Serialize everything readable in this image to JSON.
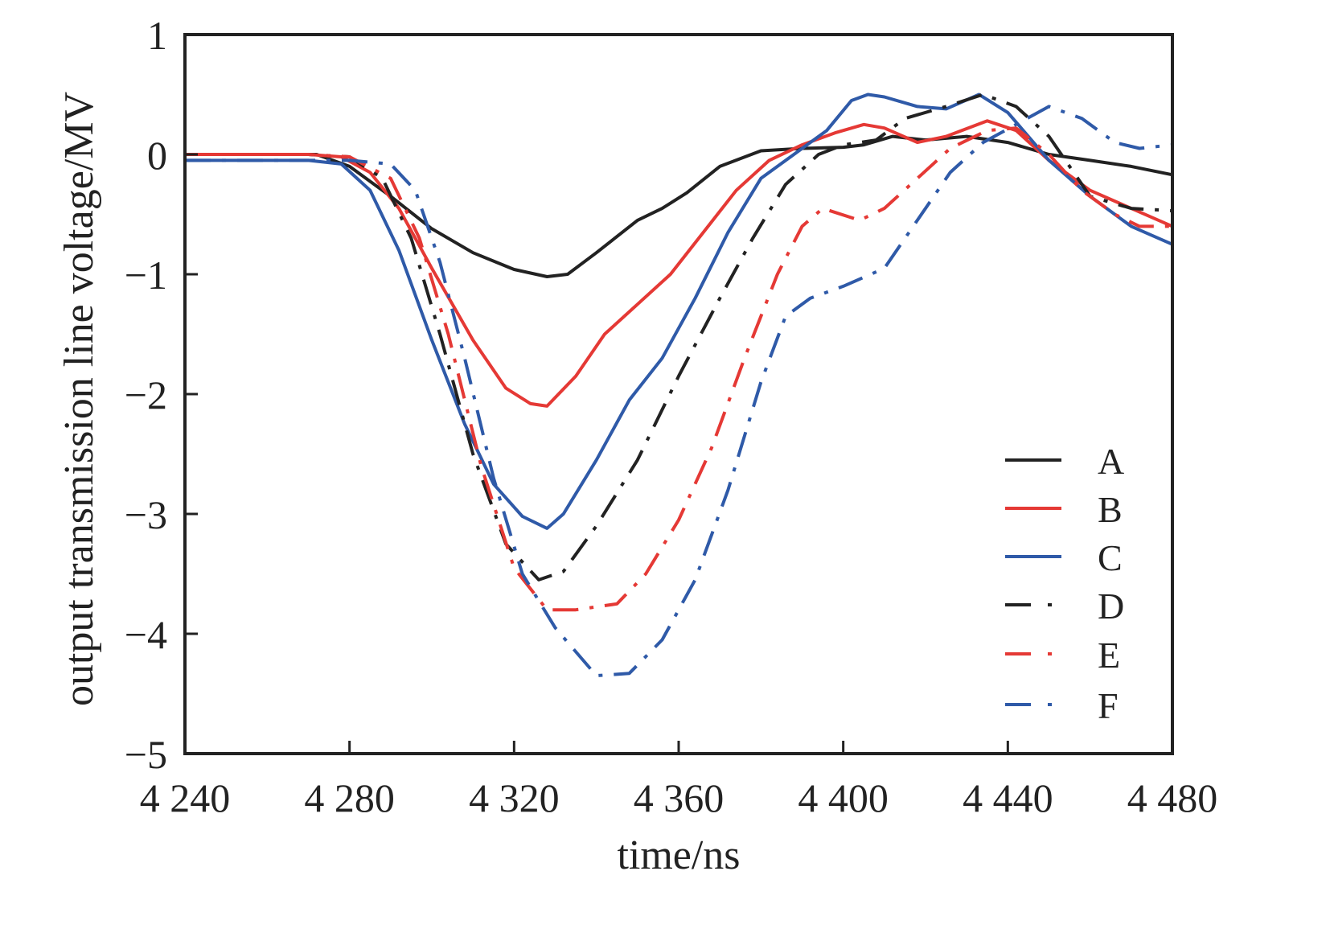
{
  "chart_data": {
    "type": "line",
    "title": "",
    "xlabel": "time/ns",
    "ylabel": "output transmission line voltage/MV",
    "xlim": [
      4240,
      4480
    ],
    "ylim": [
      -5,
      1
    ],
    "x_ticks": [
      4240,
      4280,
      4320,
      4360,
      4400,
      4440,
      4480
    ],
    "x_tick_labels": [
      "4 240",
      "4 280",
      "4 320",
      "4 360",
      "4 400",
      "4 440",
      "4 480"
    ],
    "y_ticks": [
      1,
      0,
      -1,
      -2,
      -3,
      -4,
      -5
    ],
    "y_tick_labels": [
      "1",
      "0",
      "−1",
      "−2",
      "−3",
      "−4",
      "−5"
    ],
    "grid": false,
    "legend_position": "bottom-right",
    "series": [
      {
        "name": "A",
        "color": "#222222",
        "style": "solid",
        "x": [
          4240,
          4260,
          4272,
          4280,
          4290,
          4300,
          4310,
          4320,
          4328,
          4333,
          4340,
          4350,
          4356,
          4362,
          4370,
          4380,
          4390,
          4400,
          4405,
          4412,
          4420,
          4430,
          4440,
          4450,
          4460,
          4470,
          4480
        ],
        "y": [
          0.0,
          0.0,
          0.0,
          -0.1,
          -0.35,
          -0.62,
          -0.82,
          -0.96,
          -1.02,
          -1.0,
          -0.82,
          -0.55,
          -0.45,
          -0.32,
          -0.1,
          0.03,
          0.05,
          0.06,
          0.08,
          0.15,
          0.12,
          0.15,
          0.1,
          0.0,
          -0.05,
          -0.1,
          -0.17
        ]
      },
      {
        "name": "B",
        "color": "#e53935",
        "style": "solid",
        "x": [
          4240,
          4270,
          4278,
          4285,
          4292,
          4300,
          4310,
          4318,
          4324,
          4328,
          4335,
          4342,
          4350,
          4358,
          4366,
          4374,
          4382,
          4390,
          4398,
          4405,
          4410,
          4418,
          4425,
          4435,
          4442,
          4450,
          4460,
          4470,
          4480
        ],
        "y": [
          0.0,
          0.0,
          -0.02,
          -0.15,
          -0.45,
          -0.95,
          -1.55,
          -1.95,
          -2.08,
          -2.1,
          -1.85,
          -1.5,
          -1.25,
          -1.0,
          -0.65,
          -0.3,
          -0.05,
          0.08,
          0.18,
          0.25,
          0.22,
          0.1,
          0.15,
          0.28,
          0.2,
          -0.05,
          -0.3,
          -0.45,
          -0.6
        ]
      },
      {
        "name": "C",
        "color": "#2f5aa8",
        "style": "solid",
        "x": [
          4240,
          4270,
          4278,
          4285,
          4292,
          4300,
          4308,
          4315,
          4322,
          4328,
          4332,
          4340,
          4348,
          4356,
          4364,
          4372,
          4380,
          4388,
          4396,
          4402,
          4406,
          4410,
          4418,
          4425,
          4433,
          4440,
          4450,
          4460,
          4470,
          4480
        ],
        "y": [
          -0.05,
          -0.05,
          -0.08,
          -0.3,
          -0.8,
          -1.55,
          -2.25,
          -2.75,
          -3.02,
          -3.12,
          -3.0,
          -2.55,
          -2.05,
          -1.7,
          -1.2,
          -0.65,
          -0.2,
          0.0,
          0.2,
          0.45,
          0.5,
          0.48,
          0.4,
          0.38,
          0.5,
          0.35,
          -0.05,
          -0.35,
          -0.6,
          -0.75
        ]
      },
      {
        "name": "D",
        "color": "#222222",
        "style": "dashdot",
        "x": [
          4240,
          4270,
          4280,
          4288,
          4295,
          4302,
          4310,
          4318,
          4326,
          4332,
          4340,
          4350,
          4360,
          4370,
          4378,
          4386,
          4394,
          4400,
          4408,
          4415,
          4425,
          4434,
          4442,
          4450,
          4460,
          4470,
          4480
        ],
        "y": [
          0.0,
          0.0,
          -0.02,
          -0.2,
          -0.7,
          -1.5,
          -2.5,
          -3.25,
          -3.55,
          -3.48,
          -3.1,
          -2.55,
          -1.85,
          -1.2,
          -0.7,
          -0.25,
          0.0,
          0.08,
          0.12,
          0.3,
          0.4,
          0.5,
          0.4,
          0.15,
          -0.35,
          -0.45,
          -0.47
        ]
      },
      {
        "name": "E",
        "color": "#e53935",
        "style": "dashdot",
        "x": [
          4240,
          4270,
          4280,
          4290,
          4297,
          4304,
          4312,
          4320,
          4328,
          4335,
          4345,
          4352,
          4360,
          4368,
          4376,
          4384,
          4390,
          4395,
          4404,
          4410,
          4418,
          4426,
          4435,
          4442,
          4450,
          4458,
          4466,
          4472,
          4480
        ],
        "y": [
          0.0,
          0.0,
          -0.02,
          -0.2,
          -0.7,
          -1.5,
          -2.6,
          -3.45,
          -3.8,
          -3.8,
          -3.75,
          -3.5,
          -3.05,
          -2.45,
          -1.7,
          -1.0,
          -0.6,
          -0.45,
          -0.55,
          -0.45,
          -0.2,
          0.05,
          0.2,
          0.22,
          0.0,
          -0.3,
          -0.5,
          -0.6,
          -0.6
        ]
      },
      {
        "name": "F",
        "color": "#2f5aa8",
        "style": "dashdot",
        "x": [
          4240,
          4280,
          4290,
          4296,
          4302,
          4308,
          4315,
          4322,
          4330,
          4340,
          4348,
          4356,
          4364,
          4372,
          4380,
          4386,
          4392,
          4400,
          4410,
          4418,
          4426,
          4434,
          4442,
          4450,
          4458,
          4466,
          4472,
          4480
        ],
        "y": [
          -0.05,
          -0.05,
          -0.08,
          -0.3,
          -0.9,
          -1.7,
          -2.7,
          -3.5,
          -3.95,
          -4.35,
          -4.33,
          -4.05,
          -3.55,
          -2.8,
          -1.9,
          -1.35,
          -1.2,
          -1.1,
          -0.95,
          -0.55,
          -0.15,
          0.1,
          0.25,
          0.4,
          0.3,
          0.1,
          0.05,
          0.08
        ]
      }
    ]
  }
}
